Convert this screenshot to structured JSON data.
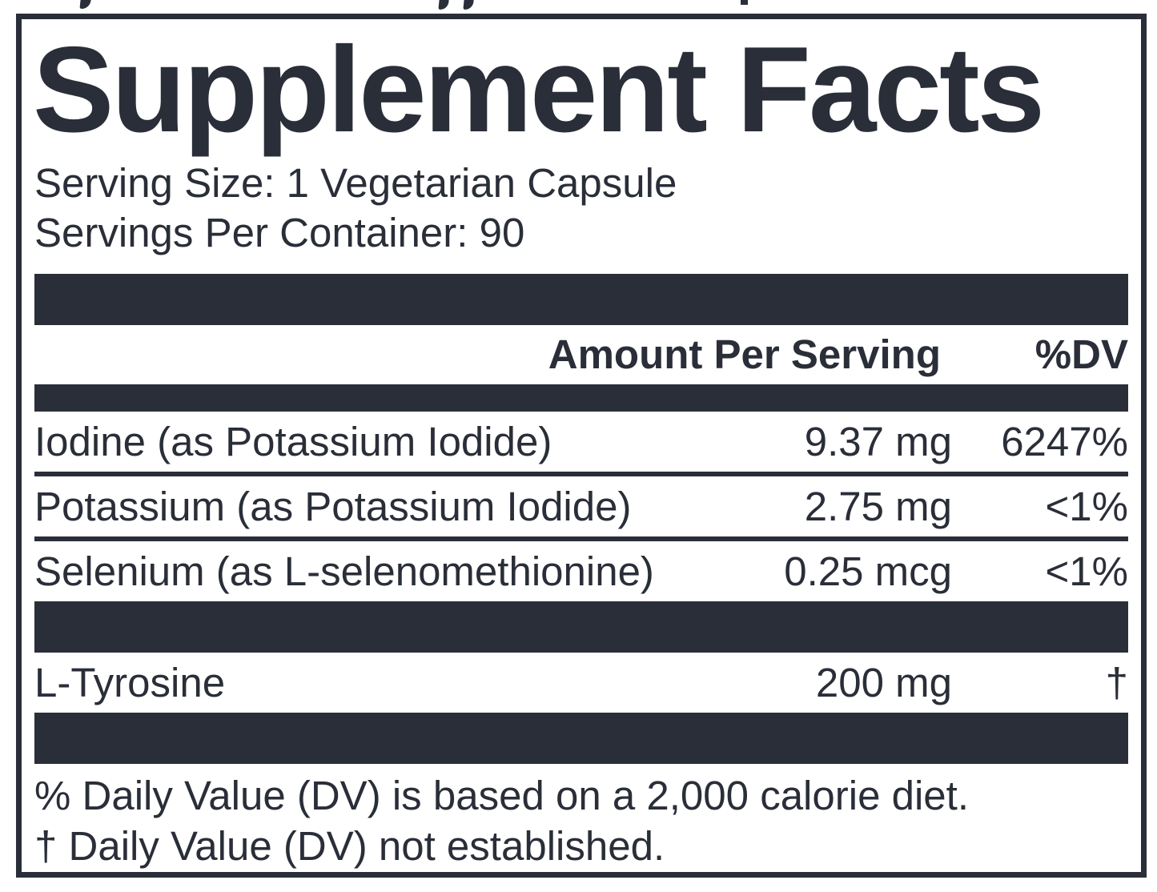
{
  "label": {
    "title": "Supplement Facts",
    "serving_size": "Serving Size: 1 Vegetarian Capsule",
    "servings_per_container": "Servings Per Container: 90",
    "columns": {
      "amount": "Amount Per Serving",
      "dv": "%DV"
    },
    "nutrients": [
      {
        "name": "Iodine (as Potassium Iodide)",
        "amount": "9.37 mg",
        "dv": "6247%"
      },
      {
        "name": "Potassium (as Potassium Iodide)",
        "amount": "2.75 mg",
        "dv": "<1%"
      },
      {
        "name": "Selenium (as L-selenomethionine)",
        "amount": "0.25 mcg",
        "dv": "<1%"
      }
    ],
    "other_ingredients": [
      {
        "name": "L-Tyrosine",
        "amount": "200 mg",
        "dv": "†"
      }
    ],
    "footnotes": [
      "% Daily Value (DV) is based on a 2,000 calorie diet.",
      "† Daily Value (DV) not established."
    ],
    "colors": {
      "ink": "#2a2e38",
      "background": "#ffffff"
    }
  }
}
